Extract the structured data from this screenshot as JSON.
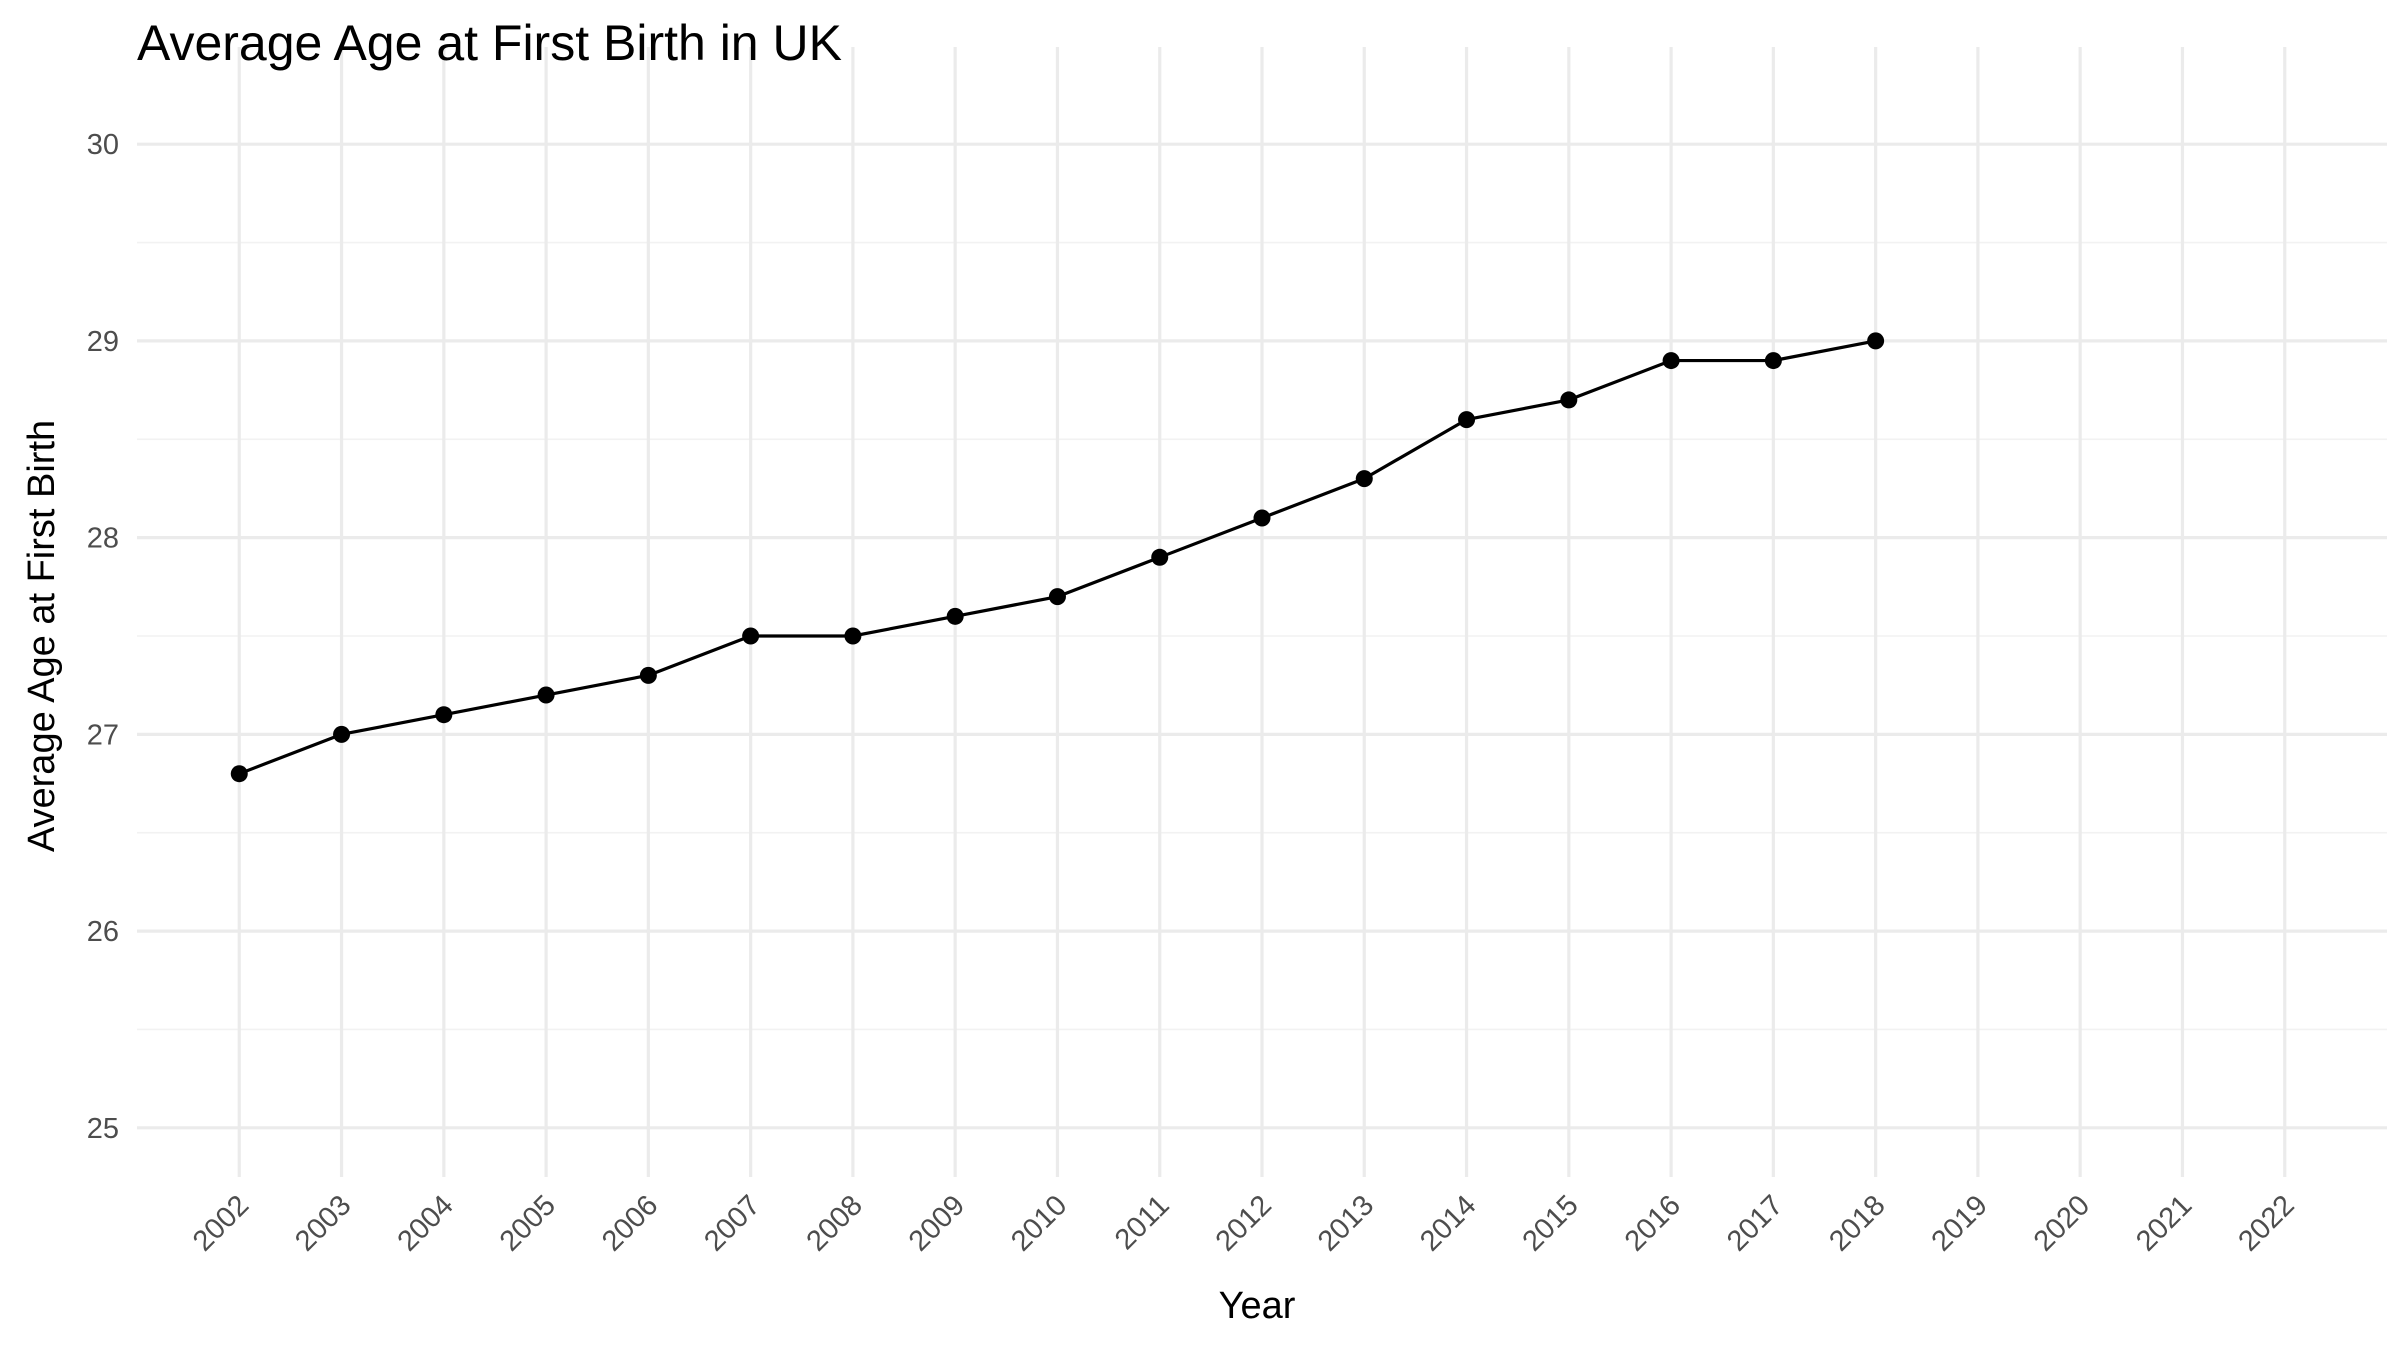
{
  "chart_data": {
    "type": "line",
    "title": "Average Age at First Birth in UK",
    "xlabel": "Year",
    "ylabel": "Average Age at First Birth",
    "x": [
      2002,
      2003,
      2004,
      2005,
      2006,
      2007,
      2008,
      2009,
      2010,
      2011,
      2012,
      2013,
      2014,
      2015,
      2016,
      2017,
      2018
    ],
    "x_ticks": [
      "2002",
      "2003",
      "2004",
      "2005",
      "2006",
      "2007",
      "2008",
      "2009",
      "2010",
      "2011",
      "2012",
      "2013",
      "2014",
      "2015",
      "2016",
      "2017",
      "2018",
      "2019",
      "2020",
      "2021",
      "2022"
    ],
    "y_ticks": [
      "25",
      "26",
      "27",
      "28",
      "29",
      "30"
    ],
    "series": [
      {
        "values": [
          26.8,
          27.0,
          27.1,
          27.2,
          27.3,
          27.5,
          27.5,
          27.6,
          27.7,
          27.9,
          28.1,
          28.3,
          28.6,
          28.7,
          28.9,
          28.9,
          29.0
        ]
      }
    ],
    "xlim": [
      2001,
      2023
    ],
    "ylim": [
      24.75,
      30.25
    ],
    "grid": true,
    "colors": {
      "line": "#000000",
      "points": "#000000",
      "grid": "#ebebeb"
    }
  }
}
